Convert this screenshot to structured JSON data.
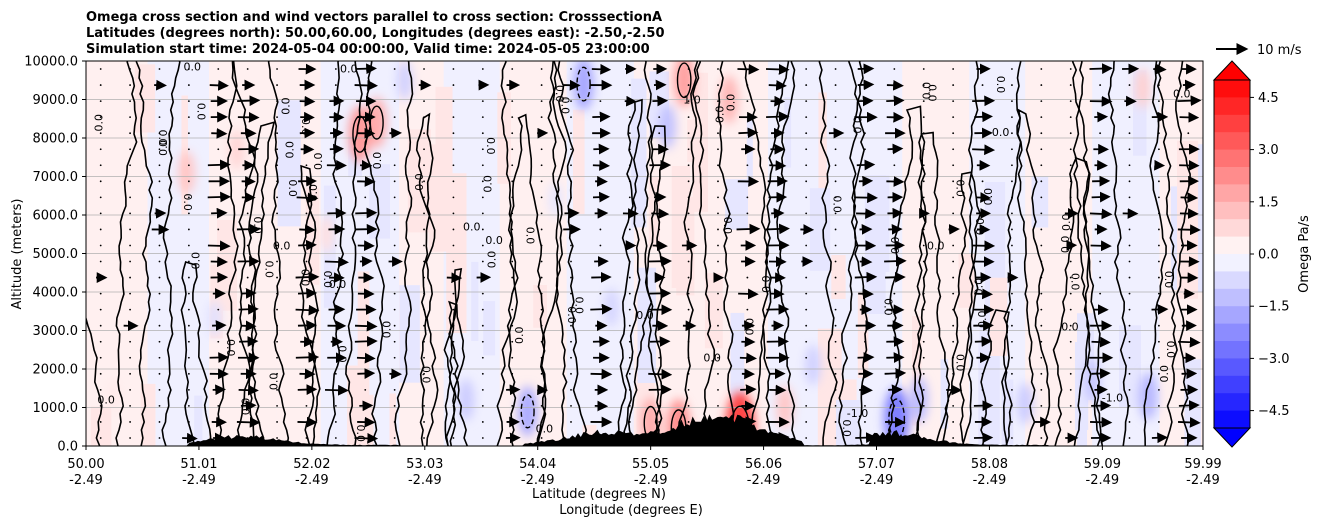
{
  "chart_data": {
    "type": "heatmap",
    "title_lines": [
      "Omega cross section and wind vectors parallel to cross section: CrosssectionA",
      "Latitudes (degrees north): 50.00,60.00, Longitudes (degrees east): -2.50,-2.50",
      "Simulation start time: 2024-05-04 00:00:00, Valid time: 2024-05-05 23:00:00"
    ],
    "ylabel": "Altitude (meters)",
    "xlabel_lines": [
      "Latitude (degrees N)",
      "Longitude (degrees E)"
    ],
    "ylim": [
      0,
      10000
    ],
    "y_ticks": [
      "0.0",
      "1000.0",
      "2000.0",
      "3000.0",
      "4000.0",
      "5000.0",
      "6000.0",
      "7000.0",
      "8000.0",
      "9000.0",
      "10000.0"
    ],
    "x_range_lat": [
      50.0,
      59.99
    ],
    "x_ticks": [
      {
        "lat": "50.00",
        "lon": "-2.49"
      },
      {
        "lat": "51.01",
        "lon": "-2.49"
      },
      {
        "lat": "52.02",
        "lon": "-2.49"
      },
      {
        "lat": "53.03",
        "lon": "-2.49"
      },
      {
        "lat": "54.04",
        "lon": "-2.49"
      },
      {
        "lat": "55.05",
        "lon": "-2.49"
      },
      {
        "lat": "56.06",
        "lon": "-2.49"
      },
      {
        "lat": "57.07",
        "lon": "-2.49"
      },
      {
        "lat": "58.08",
        "lon": "-2.49"
      },
      {
        "lat": "59.09",
        "lon": "-2.49"
      },
      {
        "lat": "59.99",
        "lon": "-2.49"
      }
    ],
    "grid": "horizontal",
    "colorbar": {
      "label": "Omega Pa/s",
      "range": [
        -5.0,
        5.0
      ],
      "ticks": [
        "4.5",
        "3.0",
        "1.5",
        "0.0",
        "−1.5",
        "−3.0",
        "−4.5"
      ],
      "tick_values": [
        4.5,
        3.0,
        1.5,
        0.0,
        -1.5,
        -3.0,
        -4.5
      ],
      "colormap": "bwr",
      "extend": "both"
    },
    "quiver_key": {
      "label": "10 m/s",
      "speed": 10
    },
    "contour_label_values": [
      "0.0",
      "1.0",
      "-1.0"
    ],
    "contour_labels_shown": [
      {
        "text": "0.0",
        "lat": 50.95,
        "alt": 9750
      },
      {
        "text": "0.0",
        "lat": 52.35,
        "alt": 9700
      },
      {
        "text": "0.0",
        "lat": 53.45,
        "alt": 5600
      },
      {
        "text": "0.0",
        "lat": 53.65,
        "alt": 5250
      },
      {
        "text": "0.0",
        "lat": 52.25,
        "alt": 4100
      },
      {
        "text": "0.0",
        "lat": 55.0,
        "alt": 3300
      },
      {
        "text": "1.0",
        "lat": 55.42,
        "alt": 8900
      },
      {
        "text": "0.0",
        "lat": 54.1,
        "alt": 350
      },
      {
        "text": "0.0",
        "lat": 59.8,
        "alt": 9050
      },
      {
        "text": "0.0",
        "lat": 58.18,
        "alt": 8050
      },
      {
        "text": "-1.0",
        "lat": 59.18,
        "alt": 1150
      },
      {
        "text": "0.0",
        "lat": 50.18,
        "alt": 1100
      },
      {
        "text": "0.0",
        "lat": 51.75,
        "alt": 5100
      },
      {
        "text": "-1.0",
        "lat": 56.9,
        "alt": 750
      },
      {
        "text": "0.0",
        "lat": 57.6,
        "alt": 5100
      },
      {
        "text": "0.0",
        "lat": 58.8,
        "alt": 3000
      },
      {
        "text": "0.0",
        "lat": 55.6,
        "alt": 2200
      }
    ],
    "terrain_peaks": [
      {
        "lat": 51.4,
        "alt": 220
      },
      {
        "lat": 54.6,
        "alt": 300
      },
      {
        "lat": 55.5,
        "alt": 500
      },
      {
        "lat": 55.9,
        "alt": 350
      },
      {
        "lat": 57.2,
        "alt": 300
      }
    ],
    "omega_cells": [
      {
        "lat": 50.25,
        "alt": 1300,
        "v": 0.4
      },
      {
        "lat": 51.35,
        "alt": 7700,
        "v": 0.8
      },
      {
        "lat": 51.15,
        "alt": 3300,
        "v": -0.6
      },
      {
        "lat": 52.45,
        "alt": 8100,
        "v": 2.0
      },
      {
        "lat": 52.6,
        "alt": 8400,
        "v": 1.6
      },
      {
        "lat": 52.85,
        "alt": 9500,
        "v": -0.9
      },
      {
        "lat": 53.4,
        "alt": 1200,
        "v": -1.0
      },
      {
        "lat": 53.95,
        "alt": 900,
        "v": -1.6
      },
      {
        "lat": 54.45,
        "alt": 9400,
        "v": -1.7
      },
      {
        "lat": 54.7,
        "alt": 3600,
        "v": -0.8
      },
      {
        "lat": 55.2,
        "alt": 8300,
        "v": -1.2
      },
      {
        "lat": 55.35,
        "alt": 9500,
        "v": 1.8
      },
      {
        "lat": 55.75,
        "alt": 9000,
        "v": 1.4
      },
      {
        "lat": 55.05,
        "alt": 600,
        "v": 1.6
      },
      {
        "lat": 55.3,
        "alt": 450,
        "v": 2.2
      },
      {
        "lat": 55.85,
        "alt": 400,
        "v": 3.6
      },
      {
        "lat": 56.25,
        "alt": 1000,
        "v": 1.1
      },
      {
        "lat": 56.5,
        "alt": 2100,
        "v": -0.9
      },
      {
        "lat": 57.25,
        "alt": 700,
        "v": -2.5
      },
      {
        "lat": 57.45,
        "alt": 1200,
        "v": -1.3
      },
      {
        "lat": 58.4,
        "alt": 1100,
        "v": -1.0
      },
      {
        "lat": 59.0,
        "alt": 1700,
        "v": -1.1
      },
      {
        "lat": 59.5,
        "alt": 1300,
        "v": -1.4
      },
      {
        "lat": 59.45,
        "alt": 9300,
        "v": 0.9
      },
      {
        "lat": 50.9,
        "alt": 7100,
        "v": 1.1
      },
      {
        "lat": 52.15,
        "alt": 5500,
        "v": 0.6
      },
      {
        "lat": 54.2,
        "alt": 6400,
        "v": -0.5
      }
    ],
    "wind_arrow_lats": [
      51.15,
      51.4,
      52.0,
      52.35,
      54.7,
      55.05,
      55.9,
      56.1,
      57.1,
      58.1,
      59.0,
      59.9
    ],
    "wind_arrow_alts": [
      9600,
      9000,
      8500,
      7800,
      7100,
      6300,
      5900,
      3600,
      3000,
      2500,
      2000,
      1500
    ]
  }
}
